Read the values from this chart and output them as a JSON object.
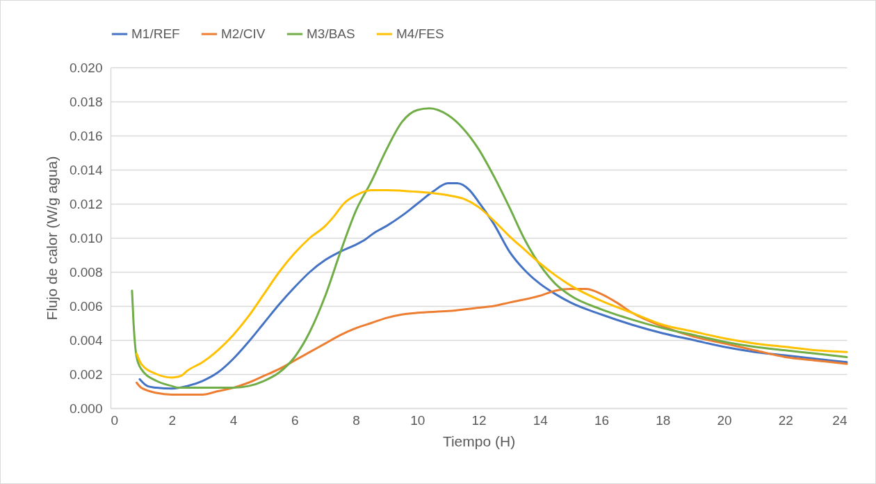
{
  "chart_data": {
    "type": "line",
    "xlabel": "Tiempo (H)",
    "ylabel": "Flujo de calor (W/g agua)",
    "xlim": [
      0,
      24
    ],
    "xticks": [
      0,
      2,
      4,
      6,
      8,
      10,
      12,
      14,
      16,
      18,
      20,
      22,
      24
    ],
    "ylim": [
      0,
      0.02
    ],
    "yticks": [
      {
        "value": 0,
        "label": "0.000"
      },
      {
        "value": 0.002,
        "label": "0.002"
      },
      {
        "value": 0.004,
        "label": "0.004"
      },
      {
        "value": 0.006,
        "label": "0.006"
      },
      {
        "value": 0.008,
        "label": "0.008"
      },
      {
        "value": 0.01,
        "label": "0.010"
      },
      {
        "value": 0.012,
        "label": "0.012"
      },
      {
        "value": 0.014,
        "label": "0.014"
      },
      {
        "value": 0.016,
        "label": "0.016"
      },
      {
        "value": 0.018,
        "label": "0.018"
      },
      {
        "value": 0.02,
        "label": "0.020"
      }
    ],
    "grid": "y",
    "legend": "top",
    "series": [
      {
        "name": "M1/REF",
        "color": "#4472c4",
        "x": [
          0.95,
          1.2,
          1.5,
          2,
          2.5,
          3,
          3.5,
          4,
          4.5,
          5,
          5.5,
          6,
          6.5,
          7,
          7.5,
          8,
          8.3,
          8.6,
          9,
          9.5,
          10,
          10.5,
          11,
          11.3,
          11.7,
          12,
          12.5,
          13,
          13.5,
          14,
          14.5,
          15,
          16,
          17,
          18,
          19,
          20,
          21,
          22,
          23,
          24
        ],
        "values": [
          0.0017,
          0.0013,
          0.0012,
          0.00115,
          0.0013,
          0.0016,
          0.0021,
          0.0029,
          0.0039,
          0.005,
          0.0061,
          0.0071,
          0.008,
          0.0087,
          0.0092,
          0.0096,
          0.0099,
          0.0103,
          0.0107,
          0.0113,
          0.012,
          0.0127,
          0.0132,
          0.0132,
          0.0128,
          0.0121,
          0.0108,
          0.0092,
          0.0081,
          0.0073,
          0.0067,
          0.0062,
          0.0055,
          0.0049,
          0.0044,
          0.004,
          0.0036,
          0.0033,
          0.0031,
          0.0029,
          0.0027
        ]
      },
      {
        "name": "M2/CIV",
        "color": "#ed7d31",
        "x": [
          0.85,
          1,
          1.5,
          2,
          2.5,
          3,
          3.5,
          4,
          4.5,
          5,
          5.5,
          6,
          6.5,
          7,
          7.5,
          8,
          8.5,
          9,
          9.5,
          10,
          11,
          12,
          12.5,
          13,
          14,
          14.5,
          15,
          15.5,
          16,
          16.5,
          17,
          18,
          19,
          20,
          21,
          22,
          23,
          24
        ],
        "values": [
          0.0015,
          0.0012,
          0.0009,
          0.0008,
          0.0008,
          0.0008,
          0.001,
          0.0012,
          0.0015,
          0.0019,
          0.0023,
          0.0028,
          0.0033,
          0.0038,
          0.0043,
          0.0047,
          0.005,
          0.0053,
          0.0055,
          0.0056,
          0.0057,
          0.0059,
          0.006,
          0.0062,
          0.0066,
          0.0069,
          0.007,
          0.007,
          0.0067,
          0.0062,
          0.0056,
          0.0048,
          0.0042,
          0.0038,
          0.0034,
          0.003,
          0.0028,
          0.0026
        ]
      },
      {
        "name": "M3/BAS",
        "color": "#70ad47",
        "x": [
          0.7,
          0.75,
          0.85,
          1,
          1.5,
          2,
          2.2,
          2.5,
          3,
          4,
          4.5,
          5,
          5.5,
          6,
          6.5,
          7,
          7.5,
          8,
          8.5,
          9,
          9.5,
          10,
          10.4,
          11,
          11.5,
          12,
          12.5,
          13,
          13.5,
          14,
          14.5,
          15,
          16,
          17,
          18,
          19,
          20,
          21,
          22,
          23,
          24
        ],
        "values": [
          0.0069,
          0.005,
          0.003,
          0.0023,
          0.0016,
          0.0013,
          0.0012,
          0.0012,
          0.0012,
          0.0012,
          0.0013,
          0.0016,
          0.0021,
          0.003,
          0.0045,
          0.0066,
          0.0092,
          0.0116,
          0.0133,
          0.0152,
          0.0168,
          0.0175,
          0.0176,
          0.0172,
          0.0164,
          0.0152,
          0.0136,
          0.0118,
          0.0099,
          0.0084,
          0.0073,
          0.0066,
          0.0058,
          0.0052,
          0.0047,
          0.0043,
          0.0039,
          0.0036,
          0.0034,
          0.0032,
          0.003
        ]
      },
      {
        "name": "M4/FES",
        "color": "#ffc000",
        "x": [
          0.85,
          1,
          1.5,
          2,
          2.3,
          2.5,
          3,
          3.5,
          4,
          4.5,
          5,
          5.5,
          6,
          6.5,
          7,
          7.3,
          7.6,
          8,
          8.5,
          9,
          10,
          11,
          11.5,
          12,
          12.5,
          13,
          13.5,
          14,
          14.5,
          15,
          16,
          17,
          18,
          19,
          20,
          21,
          22,
          23,
          24
        ],
        "values": [
          0.0032,
          0.0026,
          0.002,
          0.0018,
          0.0019,
          0.0022,
          0.0027,
          0.0034,
          0.0043,
          0.0054,
          0.0067,
          0.008,
          0.0091,
          0.01,
          0.0107,
          0.0113,
          0.012,
          0.0125,
          0.0128,
          0.0128,
          0.0127,
          0.0125,
          0.0123,
          0.0118,
          0.011,
          0.0101,
          0.0093,
          0.0085,
          0.0078,
          0.0072,
          0.0063,
          0.0056,
          0.0049,
          0.0045,
          0.0041,
          0.0038,
          0.0036,
          0.0034,
          0.0033
        ]
      }
    ]
  }
}
